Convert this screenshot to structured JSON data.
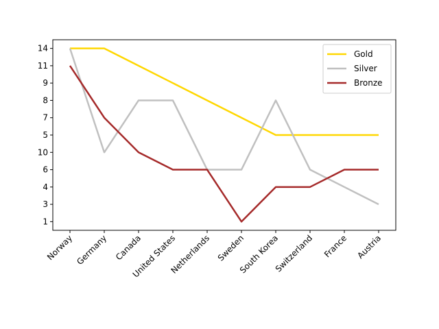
{
  "chart_data": {
    "type": "line",
    "categories": [
      "Norway",
      "Germany",
      "Canada",
      "United States",
      "Netherlands",
      "Sweden",
      "South Korea",
      "Switzerland",
      "France",
      "Austria"
    ],
    "series": [
      {
        "name": "Gold",
        "color": "#ffd700",
        "values": [
          10,
          10,
          9,
          8,
          7,
          6,
          5,
          5,
          5,
          5
        ]
      },
      {
        "name": "Silver",
        "color": "#c0c0c0",
        "values": [
          10,
          4,
          7,
          7,
          3,
          3,
          7,
          3,
          2,
          1
        ]
      },
      {
        "name": "Bronze",
        "color": "#a52a2a",
        "values": [
          9,
          6,
          4,
          3,
          3,
          0,
          2,
          2,
          3,
          3
        ]
      }
    ],
    "ylim": [
      -0.5,
      10.5
    ],
    "yticks": [
      {
        "value": 0,
        "label": "1"
      },
      {
        "value": 1,
        "label": "3"
      },
      {
        "value": 2,
        "label": "4"
      },
      {
        "value": 3,
        "label": "6"
      },
      {
        "value": 4,
        "label": "10"
      },
      {
        "value": 5,
        "label": "5"
      },
      {
        "value": 6,
        "label": "7"
      },
      {
        "value": 7,
        "label": "8"
      },
      {
        "value": 8,
        "label": "9"
      },
      {
        "value": 9,
        "label": "11"
      },
      {
        "value": 10,
        "label": "14"
      }
    ],
    "legend": "upper right"
  }
}
